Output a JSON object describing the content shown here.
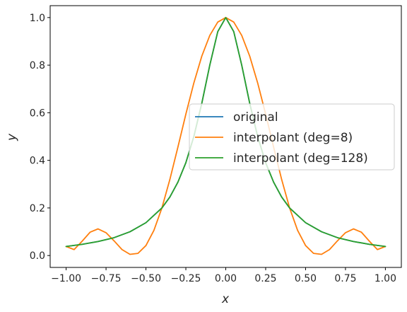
{
  "chart_data": {
    "type": "line",
    "xlabel": "x",
    "ylabel": "y",
    "xlim": [
      -1.1,
      1.1
    ],
    "ylim": [
      -0.05,
      1.05
    ],
    "xticks": [
      -1.0,
      -0.75,
      -0.5,
      -0.25,
      0.0,
      0.25,
      0.5,
      0.75,
      1.0
    ],
    "xtick_labels": [
      "−1.00",
      "−0.75",
      "−0.50",
      "−0.25",
      "0.00",
      "0.25",
      "0.50",
      "0.75",
      "1.00"
    ],
    "yticks": [
      0.0,
      0.2,
      0.4,
      0.6,
      0.8,
      1.0
    ],
    "ytick_labels": [
      "0.0",
      "0.2",
      "0.4",
      "0.6",
      "0.8",
      "1.0"
    ],
    "grid": false,
    "legend_position": "center-right",
    "series": [
      {
        "name": "original",
        "color": "#1f77b4",
        "x": [
          -1.0,
          -0.9,
          -0.8,
          -0.7,
          -0.6,
          -0.5,
          -0.4,
          -0.35,
          -0.3,
          -0.25,
          -0.2,
          -0.15,
          -0.1,
          -0.05,
          0.0,
          0.05,
          0.1,
          0.15,
          0.2,
          0.25,
          0.3,
          0.35,
          0.4,
          0.5,
          0.6,
          0.7,
          0.8,
          0.9,
          1.0
        ],
        "y": [
          0.038,
          0.047,
          0.059,
          0.075,
          0.1,
          0.138,
          0.2,
          0.246,
          0.308,
          0.39,
          0.5,
          0.64,
          0.8,
          0.941,
          1.0,
          0.941,
          0.8,
          0.64,
          0.5,
          0.39,
          0.308,
          0.246,
          0.2,
          0.138,
          0.1,
          0.075,
          0.059,
          0.047,
          0.038
        ]
      },
      {
        "name": "interpolant (deg=8)",
        "color": "#ff7f0e",
        "x": [
          -1.0,
          -0.95,
          -0.9,
          -0.85,
          -0.8,
          -0.75,
          -0.7,
          -0.65,
          -0.6,
          -0.55,
          -0.5,
          -0.45,
          -0.4,
          -0.35,
          -0.3,
          -0.25,
          -0.2,
          -0.15,
          -0.1,
          -0.05,
          0.0,
          0.05,
          0.1,
          0.15,
          0.2,
          0.25,
          0.3,
          0.35,
          0.4,
          0.45,
          0.5,
          0.55,
          0.6,
          0.65,
          0.7,
          0.75,
          0.8,
          0.85,
          0.9,
          0.95,
          1.0
        ],
        "y": [
          0.038,
          0.025,
          0.06,
          0.098,
          0.112,
          0.096,
          0.062,
          0.025,
          0.005,
          0.009,
          0.042,
          0.106,
          0.2,
          0.32,
          0.455,
          0.594,
          0.725,
          0.838,
          0.925,
          0.981,
          1.0,
          0.981,
          0.925,
          0.838,
          0.725,
          0.594,
          0.455,
          0.32,
          0.2,
          0.106,
          0.042,
          0.009,
          0.005,
          0.025,
          0.062,
          0.096,
          0.112,
          0.098,
          0.06,
          0.025,
          0.038
        ]
      },
      {
        "name": "interpolant (deg=128)",
        "color": "#2ca02c",
        "x": [
          -1.0,
          -0.9,
          -0.8,
          -0.7,
          -0.6,
          -0.5,
          -0.4,
          -0.35,
          -0.3,
          -0.25,
          -0.2,
          -0.15,
          -0.1,
          -0.05,
          0.0,
          0.05,
          0.1,
          0.15,
          0.2,
          0.25,
          0.3,
          0.35,
          0.4,
          0.5,
          0.6,
          0.7,
          0.8,
          0.9,
          1.0
        ],
        "y": [
          0.038,
          0.047,
          0.059,
          0.075,
          0.1,
          0.138,
          0.2,
          0.246,
          0.308,
          0.39,
          0.5,
          0.64,
          0.8,
          0.941,
          1.0,
          0.941,
          0.8,
          0.64,
          0.5,
          0.39,
          0.308,
          0.246,
          0.2,
          0.138,
          0.1,
          0.075,
          0.059,
          0.047,
          0.038
        ]
      }
    ]
  }
}
